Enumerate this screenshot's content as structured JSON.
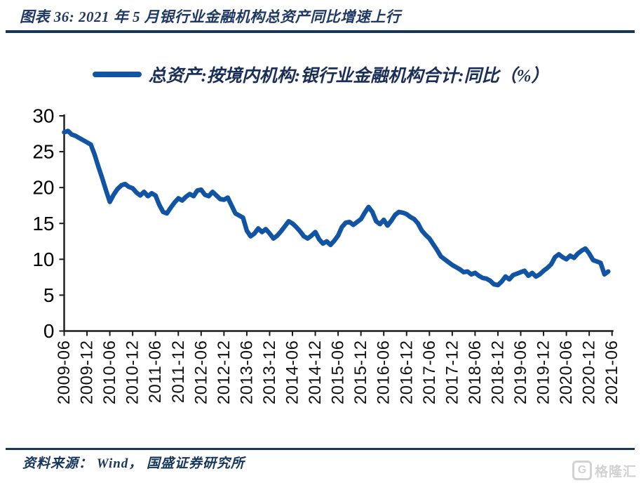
{
  "header": {
    "title": "图表 36: 2021 年 5 月银行业金融机构总资产同比增速上行"
  },
  "legend": {
    "label": "总资产:按境内机构:银行业金融机构合计:同比（%）"
  },
  "footer": {
    "source": "资料来源： Wind， 国盛证券研究所"
  },
  "watermark": {
    "icon_letter": "G",
    "text": "格隆汇"
  },
  "colors": {
    "line": "#1254a4",
    "rule": "#17365d",
    "title_text": "#1f3864",
    "legend_text": "#1a2e57",
    "axis": "#1a1a1a",
    "tick_label": "#000000",
    "watermark": "#d2d2d2"
  },
  "chart_data": {
    "type": "line",
    "title": "2021 年 5 月银行业金融机构总资产同比增速上行",
    "xlabel": "",
    "ylabel": "",
    "ylim": [
      0,
      30
    ],
    "yticks": [
      0,
      5,
      10,
      15,
      20,
      25,
      30
    ],
    "grid": false,
    "legend_position": "top",
    "categories": [
      "2009-06",
      "2009-12",
      "2010-06",
      "2010-12",
      "2011-06",
      "2011-12",
      "2012-06",
      "2012-12",
      "2013-06",
      "2013-12",
      "2014-06",
      "2014-12",
      "2015-06",
      "2015-12",
      "2016-06",
      "2016-12",
      "2017-06",
      "2017-12",
      "2018-06",
      "2018-12",
      "2019-06",
      "2019-12",
      "2020-06",
      "2020-12",
      "2021-06"
    ],
    "x_start_month": "2009-06",
    "x_end_month": "2021-05",
    "series": [
      {
        "name": "总资产:按境内机构:银行业金融机构合计:同比（%）",
        "monthly_values": [
          27.7,
          27.9,
          27.4,
          27.2,
          26.9,
          26.6,
          26.3,
          26.0,
          24.6,
          22.9,
          21.3,
          19.6,
          18.0,
          19.0,
          19.8,
          20.3,
          20.5,
          20.1,
          19.9,
          19.3,
          18.9,
          19.4,
          18.8,
          19.2,
          18.9,
          17.6,
          16.6,
          16.4,
          17.2,
          17.9,
          18.5,
          18.2,
          18.7,
          19.1,
          18.8,
          19.6,
          19.7,
          19.0,
          18.8,
          19.4,
          18.9,
          18.4,
          18.3,
          18.6,
          17.5,
          16.4,
          16.1,
          15.8,
          14.0,
          13.2,
          13.6,
          14.3,
          13.8,
          14.2,
          13.6,
          12.9,
          13.3,
          13.9,
          14.6,
          15.3,
          15.0,
          14.5,
          13.9,
          13.2,
          12.9,
          13.3,
          13.8,
          12.8,
          12.2,
          12.5,
          12.0,
          12.6,
          13.3,
          14.5,
          15.1,
          15.2,
          14.8,
          15.2,
          15.6,
          16.5,
          17.3,
          16.6,
          15.3,
          14.9,
          15.5,
          14.7,
          15.4,
          16.2,
          16.6,
          16.5,
          16.3,
          15.9,
          15.6,
          15.0,
          14.0,
          13.4,
          12.9,
          12.1,
          11.3,
          10.4,
          10.0,
          9.6,
          9.2,
          8.9,
          8.6,
          8.2,
          8.3,
          7.9,
          8.1,
          7.7,
          7.4,
          7.3,
          7.0,
          6.5,
          6.4,
          6.9,
          7.6,
          7.2,
          7.8,
          8.0,
          8.2,
          8.4,
          7.7,
          8.1,
          7.6,
          7.9,
          8.4,
          8.8,
          9.3,
          10.3,
          10.7,
          10.3,
          10.0,
          10.5,
          10.2,
          10.8,
          11.2,
          11.5,
          10.8,
          9.9,
          9.7,
          9.5,
          7.9,
          8.3
        ]
      }
    ]
  }
}
